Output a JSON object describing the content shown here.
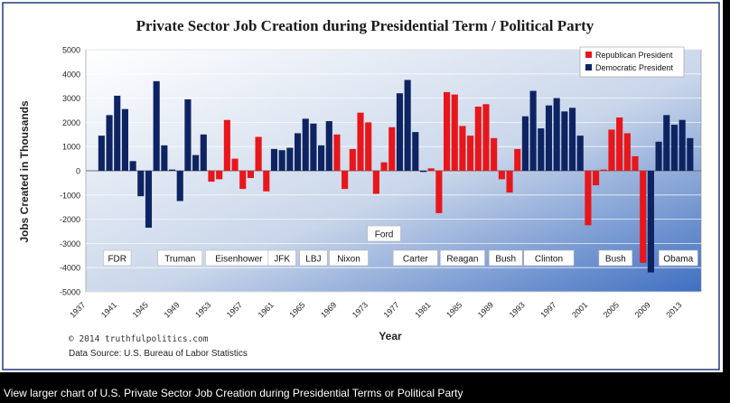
{
  "caption": "View larger chart of U.S. Private Sector Job Creation during Presidential Terms or Political Party",
  "colors": {
    "republican": "#e8161b",
    "democratic": "#0e2462",
    "frame_border": "#1f3a78"
  },
  "chart_data": {
    "type": "bar",
    "title": "Private Sector Job Creation during Presidential Term / Political Party",
    "xlabel": "Year",
    "ylabel": "Jobs Created in Thousands",
    "ylim": [
      -5000,
      5000
    ],
    "yticks": [
      5000,
      4000,
      3000,
      2000,
      1000,
      0,
      -1000,
      -2000,
      -3000,
      -4000,
      -5000
    ],
    "ytick_labels": [
      "5000",
      "4000",
      "3000",
      "2000",
      "1000",
      "0",
      "-1000",
      "-2000",
      "-3000",
      "-4000",
      "-5000"
    ],
    "xticks": [
      1937,
      1941,
      1945,
      1949,
      1953,
      1957,
      1961,
      1965,
      1969,
      1973,
      1977,
      1981,
      1985,
      1989,
      1993,
      1997,
      2001,
      2005,
      2009,
      2013
    ],
    "grid": true,
    "legend_position": "top-right",
    "legend": [
      {
        "label": "Republican President",
        "party": "R"
      },
      {
        "label": "Democratic President",
        "party": "D"
      }
    ],
    "years": [
      1939,
      1940,
      1941,
      1942,
      1943,
      1944,
      1945,
      1946,
      1947,
      1948,
      1949,
      1950,
      1951,
      1952,
      1953,
      1954,
      1955,
      1956,
      1957,
      1958,
      1959,
      1960,
      1961,
      1962,
      1963,
      1964,
      1965,
      1966,
      1967,
      1968,
      1969,
      1970,
      1971,
      1972,
      1973,
      1974,
      1975,
      1976,
      1977,
      1978,
      1979,
      1980,
      1981,
      1982,
      1983,
      1984,
      1985,
      1986,
      1987,
      1988,
      1989,
      1990,
      1991,
      1992,
      1993,
      1994,
      1995,
      1996,
      1997,
      1998,
      1999,
      2000,
      2001,
      2002,
      2003,
      2004,
      2005,
      2006,
      2007,
      2008,
      2009,
      2010,
      2011,
      2012,
      2013,
      2014
    ],
    "values": [
      1450,
      2300,
      3100,
      2550,
      400,
      -1050,
      -2350,
      3700,
      1050,
      50,
      -1250,
      2950,
      650,
      1500,
      -450,
      -350,
      2100,
      500,
      -750,
      -300,
      1400,
      -850,
      900,
      850,
      950,
      1550,
      2150,
      1950,
      1050,
      2050,
      1500,
      -750,
      900,
      2400,
      2000,
      -950,
      350,
      1800,
      3200,
      3750,
      1600,
      -50,
      100,
      -1750,
      3250,
      3150,
      1850,
      1450,
      2650,
      2750,
      1350,
      -350,
      -900,
      900,
      2250,
      3300,
      1750,
      2700,
      3000,
      2450,
      2600,
      1450,
      -2250,
      -600,
      50,
      1700,
      2200,
      1550,
      600,
      -3800,
      -4200,
      1200,
      2300,
      1900,
      2100,
      1350
    ],
    "parties": [
      "D",
      "D",
      "D",
      "D",
      "D",
      "D",
      "D",
      "D",
      "D",
      "D",
      "D",
      "D",
      "D",
      "D",
      "R",
      "R",
      "R",
      "R",
      "R",
      "R",
      "R",
      "R",
      "D",
      "D",
      "D",
      "D",
      "D",
      "D",
      "D",
      "D",
      "R",
      "R",
      "R",
      "R",
      "R",
      "R",
      "R",
      "R",
      "D",
      "D",
      "D",
      "D",
      "R",
      "R",
      "R",
      "R",
      "R",
      "R",
      "R",
      "R",
      "R",
      "R",
      "R",
      "R",
      "D",
      "D",
      "D",
      "D",
      "D",
      "D",
      "D",
      "D",
      "R",
      "R",
      "R",
      "R",
      "R",
      "R",
      "R",
      "R",
      "D",
      "D",
      "D",
      "D",
      "D",
      "D"
    ],
    "president_labels": [
      {
        "name": "FDR",
        "year": 1941,
        "row": "low"
      },
      {
        "name": "Truman",
        "year": 1949,
        "row": "low"
      },
      {
        "name": "Eisenhower",
        "year": 1956.5,
        "row": "low"
      },
      {
        "name": "JFK",
        "year": 1962,
        "row": "low"
      },
      {
        "name": "LBJ",
        "year": 1966,
        "row": "low"
      },
      {
        "name": "Nixon",
        "year": 1970.5,
        "row": "low"
      },
      {
        "name": "Ford",
        "year": 1975,
        "row": "high"
      },
      {
        "name": "Carter",
        "year": 1979,
        "row": "low"
      },
      {
        "name": "Reagan",
        "year": 1985,
        "row": "low"
      },
      {
        "name": "Bush",
        "year": 1990.5,
        "row": "low"
      },
      {
        "name": "Clinton",
        "year": 1996,
        "row": "low"
      },
      {
        "name": "Bush",
        "year": 2004.5,
        "row": "low"
      },
      {
        "name": "Obama",
        "year": 2012.5,
        "row": "low"
      }
    ],
    "annotations": {
      "copyright": "© 2014 truthfulpolitics.com",
      "source": "Data Source: U.S. Bureau of Labor Statistics"
    }
  }
}
